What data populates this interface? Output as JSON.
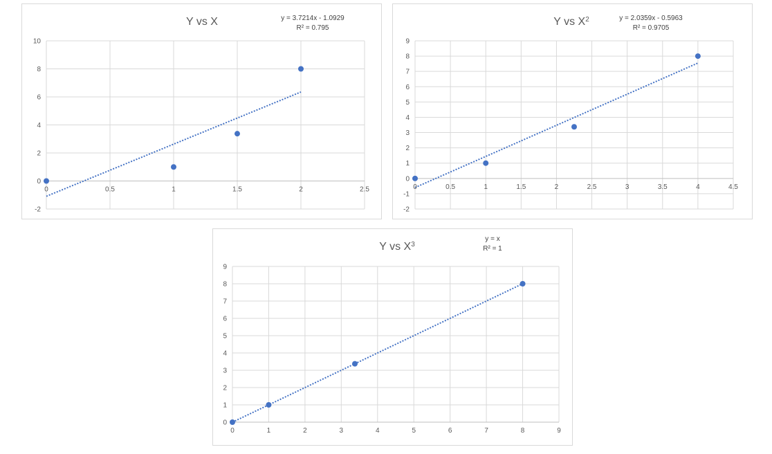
{
  "colors": {
    "series": "#4472c4",
    "grid": "#d9d9d9",
    "text": "#595959"
  },
  "chart_data": [
    {
      "type": "scatter",
      "title_base": "Y vs X",
      "title_sup": "",
      "equation": "y = 3.7214x - 1.0929",
      "r2": "R² = 0.795",
      "xlim": [
        0,
        2.5
      ],
      "ylim": [
        -2,
        10
      ],
      "x_ticks": [
        "0",
        "0.5",
        "1",
        "1.5",
        "2",
        "2.5"
      ],
      "x_tick_values": [
        0,
        0.5,
        1,
        1.5,
        2,
        2.5
      ],
      "y_ticks": [
        "-2",
        "0",
        "2",
        "4",
        "6",
        "8",
        "10"
      ],
      "y_tick_values": [
        -2,
        0,
        2,
        4,
        6,
        8,
        10
      ],
      "x": [
        0,
        1,
        1.5,
        2
      ],
      "y": [
        0,
        1,
        3.375,
        8
      ],
      "trendline": {
        "slope": 3.7214,
        "intercept": -1.0929,
        "x_range": [
          0,
          2
        ]
      },
      "grid": true
    },
    {
      "type": "scatter",
      "title_base": "Y vs X",
      "title_sup": "2",
      "equation": "y = 2.0359x - 0.5963",
      "r2": "R² = 0.9705",
      "xlim": [
        0,
        4.5
      ],
      "ylim": [
        -2,
        9
      ],
      "x_ticks": [
        "0",
        "0.5",
        "1",
        "1.5",
        "2",
        "2.5",
        "3",
        "3.5",
        "4",
        "4.5"
      ],
      "x_tick_values": [
        0,
        0.5,
        1,
        1.5,
        2,
        2.5,
        3,
        3.5,
        4,
        4.5
      ],
      "y_ticks": [
        "-2",
        "-1",
        "0",
        "1",
        "2",
        "3",
        "4",
        "5",
        "6",
        "7",
        "8",
        "9"
      ],
      "y_tick_values": [
        -2,
        -1,
        0,
        1,
        2,
        3,
        4,
        5,
        6,
        7,
        8,
        9
      ],
      "x": [
        0,
        1,
        2.25,
        4
      ],
      "y": [
        0,
        1,
        3.375,
        8
      ],
      "trendline": {
        "slope": 2.0359,
        "intercept": -0.5963,
        "x_range": [
          0,
          4
        ]
      },
      "grid": true
    },
    {
      "type": "scatter",
      "title_base": "Y vs X",
      "title_sup": "3",
      "equation": "y = x",
      "r2": "R² = 1",
      "xlim": [
        0,
        9
      ],
      "ylim": [
        0,
        9
      ],
      "x_ticks": [
        "0",
        "1",
        "2",
        "3",
        "4",
        "5",
        "6",
        "7",
        "8",
        "9"
      ],
      "x_tick_values": [
        0,
        1,
        2,
        3,
        4,
        5,
        6,
        7,
        8,
        9
      ],
      "y_ticks": [
        "0",
        "1",
        "2",
        "3",
        "4",
        "5",
        "6",
        "7",
        "8",
        "9"
      ],
      "y_tick_values": [
        0,
        1,
        2,
        3,
        4,
        5,
        6,
        7,
        8,
        9
      ],
      "x": [
        0,
        1,
        3.375,
        8
      ],
      "y": [
        0,
        1,
        3.375,
        8
      ],
      "trendline": {
        "slope": 1,
        "intercept": 0,
        "x_range": [
          0,
          8
        ]
      },
      "grid": true
    }
  ]
}
